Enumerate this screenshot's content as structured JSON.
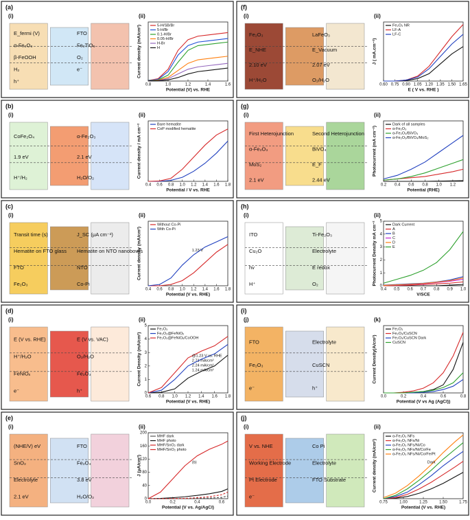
{
  "panels": [
    {
      "label": "(a)",
      "sub": [
        "(i)",
        "(ii)"
      ],
      "texts": [
        "E_fermi (V)",
        "FTO",
        "α-Fe₂O₃",
        "Fe₂TiO₅",
        "β-FeOOH",
        "O₂",
        "H₂",
        "e⁻",
        "h⁺"
      ]
    },
    {
      "label": "(b)",
      "sub": [
        "(i)",
        "(ii)"
      ],
      "texts": [
        "CoFe₂O₄",
        "α-Fe₂O₃",
        "1.9 eV",
        "2.1 eV",
        "H⁺/H₂",
        "H₂O/O₂"
      ]
    },
    {
      "label": "(c)",
      "sub": [
        "(i)",
        "(ii)"
      ],
      "texts": [
        "Transit time (s)",
        "J_SC (μA cm⁻²)",
        "Hematite on FTO glass",
        "Hematite on NTO nanobowls",
        "FTO",
        "NTO",
        "Fe₂O₃",
        "Co-Pi"
      ]
    },
    {
      "label": "(d)",
      "sub": [
        "(i)",
        "(ii)"
      ],
      "texts": [
        "E (V vs. RHE)",
        "E (V vs. VAC)",
        "H⁺/H₂O",
        "O₂/H₂O",
        "FeNiOₓ",
        "Fe₂O₃",
        "e⁻",
        "h⁺"
      ]
    },
    {
      "label": "(e)",
      "sub": [
        "(i)",
        "(ii)"
      ],
      "texts": [
        "(NHE/V) eV",
        "FTO",
        "SnO₂",
        "Fe₂O₃",
        "Electrolyte",
        "3.8 eV",
        "2.1 eV",
        "H₂O/O₂"
      ]
    },
    {
      "label": "(f)",
      "sub": [
        "(i)",
        "(ii)"
      ],
      "texts": [
        "Fe₂O₃",
        "LaFeO₃",
        "E_NHE",
        "E_Vacuum",
        "2.10 eV",
        "2.07 eV",
        "H⁺/H₂O",
        "O₂/H₂O"
      ]
    },
    {
      "label": "(g)",
      "sub": [
        "(i)",
        "(ii)"
      ],
      "texts": [
        "First Heterojunction",
        "Second Heterojunction",
        "α-Fe₂O₃",
        "BiVO₄",
        "MoS₂",
        "E_F",
        "2.1 eV",
        "2.44 eV"
      ]
    },
    {
      "label": "(h)",
      "sub": [
        "(i)",
        "(ii)"
      ],
      "texts": [
        "ITO",
        "Ti-Fe₂O₃",
        "Cu₂O",
        "Electrolyte",
        "hv",
        "E redox",
        "H⁺",
        "O₂"
      ]
    },
    {
      "label": "(i)",
      "sub": [
        "(j)",
        "(k)"
      ],
      "texts": [
        "FTO",
        "Electrolyte",
        "Fe₂O₃",
        "CuSCN",
        "e⁻",
        "h⁺"
      ]
    },
    {
      "label": "(j)",
      "sub": [
        "(i)",
        "(ii)"
      ],
      "texts": [
        "V vs. NHE",
        "Co Pi",
        "Working Electrode",
        "Electrolyte",
        "Pt Electrode",
        "FTO Substrate",
        "e⁻"
      ]
    }
  ],
  "chart_data": [
    {
      "type": "line",
      "xlabel": "Potential (V) vs. RHE",
      "ylabel": "Current density (mA/cm²)",
      "x": [
        0.8,
        0.9,
        1.0,
        1.1,
        1.2,
        1.3,
        1.4,
        1.5,
        1.6
      ],
      "xlim": [
        0.8,
        1.6
      ],
      "xticks": [
        0.8,
        {
          "value": 1.0,
          "label": "1.0"
        },
        1.2,
        1.4,
        1.6
      ],
      "ylim": [
        0,
        5
      ],
      "series": [
        {
          "name": "5-H/SB/Br",
          "color": "#d62728",
          "values": [
            0.05,
            0.2,
            1.0,
            2.6,
            3.5,
            3.8,
            3.9,
            4.0,
            4.1
          ]
        },
        {
          "name": "5-H/Br",
          "color": "#1f4fd6",
          "values": [
            0.05,
            0.15,
            0.8,
            2.2,
            3.0,
            3.3,
            3.4,
            3.5,
            3.6
          ]
        },
        {
          "name": "0.1-H/Br",
          "color": "#2ca02c",
          "values": [
            0.03,
            0.1,
            0.5,
            1.6,
            2.6,
            3.0,
            3.1,
            3.2,
            3.3
          ]
        },
        {
          "name": "0.05-H/Br",
          "color": "#ff7f0e",
          "values": [
            0.02,
            0.08,
            0.3,
            0.9,
            1.5,
            1.8,
            1.9,
            2.0,
            2.1
          ]
        },
        {
          "name": "H-Br",
          "color": "#9467bd",
          "values": [
            0.02,
            0.05,
            0.2,
            0.6,
            1.0,
            1.2,
            1.3,
            1.4,
            1.5
          ]
        },
        {
          "name": "H",
          "color": "#111111",
          "values": [
            0.01,
            0.03,
            0.1,
            0.3,
            0.6,
            0.8,
            0.9,
            1.0,
            1.1
          ]
        }
      ]
    },
    {
      "type": "line",
      "xlabel": "Potential / V vs. RHE",
      "ylabel": "Current density / mA cm⁻²",
      "x": [
        0.4,
        0.6,
        0.8,
        1.0,
        1.2,
        1.4,
        1.6,
        1.8
      ],
      "xlim": [
        0.4,
        1.8
      ],
      "xticks": [
        0.4,
        0.6,
        0.8,
        {
          "value": 1.0,
          "label": "1.0"
        },
        1.2,
        1.4,
        1.6,
        1.8
      ],
      "ylim": [
        0,
        3
      ],
      "series": [
        {
          "name": "Bare hematite",
          "color": "#1f3fbf",
          "values": [
            0,
            0,
            0.05,
            0.2,
            0.5,
            0.9,
            1.4,
            2.0
          ]
        },
        {
          "name": "CoP modified hematite",
          "color": "#d62728",
          "values": [
            0,
            0.02,
            0.15,
            0.6,
            1.2,
            1.8,
            2.3,
            2.6
          ]
        }
      ]
    },
    {
      "type": "line",
      "xlabel": "Potential (V vs. RHE)",
      "ylabel": "Current density (mA/cm²)",
      "x": [
        0.4,
        0.6,
        0.8,
        1.0,
        1.2,
        1.4,
        1.6,
        1.8
      ],
      "xlim": [
        0.4,
        1.8
      ],
      "xticks": [
        0.4,
        0.6,
        0.8,
        {
          "value": 1.0,
          "label": "1.0"
        },
        1.2,
        1.4,
        1.6,
        1.8
      ],
      "ylim": [
        0,
        2.5
      ],
      "annotations": [
        "1.23 V"
      ],
      "series": [
        {
          "name": "Without Co-Pi",
          "color": "#d62728",
          "values": [
            0,
            0,
            0.05,
            0.2,
            0.5,
            0.9,
            1.3,
            1.6
          ]
        },
        {
          "name": "With Co-Pi",
          "color": "#1f3fbf",
          "values": [
            0,
            0.05,
            0.3,
            0.8,
            1.2,
            1.5,
            1.7,
            1.9
          ]
        }
      ]
    },
    {
      "type": "line",
      "xlabel": "Potential (V vs. RHE)",
      "ylabel": "Current Density (mA/cm²)",
      "x": [
        0.6,
        0.8,
        1.0,
        1.2,
        1.4,
        1.6,
        1.8
      ],
      "xlim": [
        0.6,
        1.8
      ],
      "xticks": [
        0.6,
        0.8,
        {
          "value": 1.0,
          "label": "1.0"
        },
        1.2,
        1.4,
        1.6,
        1.8
      ],
      "ylim": [
        0,
        5
      ],
      "yticks": [
        0,
        1,
        2,
        3,
        4,
        5
      ],
      "annotations": [
        "@1.23 V vs. RHE",
        "2.71 mA/cm²",
        "2.24 mA/cm²",
        "1.24 mA/cm²"
      ],
      "series": [
        {
          "name": "Fe₂O₃",
          "color": "#111111",
          "values": [
            0,
            0.05,
            0.3,
            1.1,
            1.6,
            2.0,
            2.8
          ]
        },
        {
          "name": "Fe₂O₃@FeNiOₓ",
          "color": "#1f3fbf",
          "values": [
            0,
            0.2,
            1.0,
            2.0,
            2.5,
            2.9,
            3.6
          ]
        },
        {
          "name": "Fe₂O₃@FeNiOₓ/CoOOH",
          "color": "#d62728",
          "values": [
            0,
            0.4,
            1.5,
            2.6,
            3.1,
            3.5,
            4.2
          ]
        }
      ]
    },
    {
      "type": "line",
      "xlabel": "Potential (V vs. Ag/AgCl)",
      "ylabel": "J (μA/cm²)",
      "x": [
        0,
        0.1,
        0.2,
        0.3,
        0.4,
        0.5,
        0.6,
        0.65
      ],
      "xlim": [
        0,
        0.65
      ],
      "xticks": [
        {
          "value": 0,
          "label": "0.0"
        },
        0.2,
        0.4,
        0.6
      ],
      "ylim": [
        0,
        200
      ],
      "yticks": [
        0,
        40,
        80,
        120,
        160,
        200
      ],
      "annotations": [
        "(b)"
      ],
      "series": [
        {
          "name": "MHF dark",
          "color": "#555555",
          "dashed": true,
          "values": [
            0,
            0,
            0,
            0.5,
            1,
            2,
            4,
            8
          ]
        },
        {
          "name": "MHF photo",
          "color": "#111111",
          "values": [
            0,
            1,
            3,
            6,
            10,
            15,
            22,
            30
          ]
        },
        {
          "name": "MHF/SnO₂ dark",
          "color": "#d62728",
          "dashed": true,
          "values": [
            0,
            0,
            0.5,
            1,
            3,
            6,
            12,
            20
          ]
        },
        {
          "name": "MHF/SnO₂ photo",
          "color": "#d62728",
          "values": [
            0,
            20,
            60,
            100,
            130,
            150,
            165,
            175
          ]
        }
      ]
    },
    {
      "type": "line",
      "xlabel": "E ( V vs. RHE )",
      "ylabel": "J ( mA.cm⁻²)",
      "x": [
        0.6,
        0.75,
        0.9,
        1.05,
        1.2,
        1.35,
        1.5,
        1.65
      ],
      "xlim": [
        0.6,
        1.65
      ],
      "xticks": [
        {
          "value": 0.6,
          "label": "0.60"
        },
        0.75,
        {
          "value": 0.9,
          "label": "0.90"
        },
        1.05,
        {
          "value": 1.2,
          "label": "1.20"
        },
        1.35,
        {
          "value": 1.5,
          "label": "1.50"
        },
        1.65
      ],
      "ylim": [
        0,
        1.2
      ],
      "series": [
        {
          "name": "Fe₂O₃ NR",
          "color": "#111111",
          "values": [
            0,
            0,
            0.01,
            0.05,
            0.15,
            0.35,
            0.55,
            0.7
          ]
        },
        {
          "name": "LF-A",
          "color": "#d62728",
          "values": [
            0,
            0,
            0.02,
            0.1,
            0.3,
            0.6,
            0.9,
            1.15
          ]
        },
        {
          "name": "LF-C",
          "color": "#1f3fbf",
          "values": [
            0,
            0,
            0.02,
            0.08,
            0.25,
            0.5,
            0.75,
            0.95
          ]
        }
      ]
    },
    {
      "type": "line",
      "xlabel": "Potential (RHE)",
      "ylabel": "Photocurrent (mA cm⁻²)",
      "x": [
        0.2,
        0.4,
        0.6,
        0.8,
        1.0,
        1.2,
        1.35
      ],
      "xlim": [
        0.2,
        1.35
      ],
      "xticks": [
        0.2,
        0.4,
        0.6,
        0.8,
        {
          "value": 1.0,
          "label": "1.0"
        },
        1.2
      ],
      "ylim": [
        0,
        2.5
      ],
      "series": [
        {
          "name": "Dark of all samples",
          "color": "#111111",
          "values": [
            0,
            0,
            0,
            0,
            0.01,
            0.02,
            0.03
          ]
        },
        {
          "name": "α-Fe₂O₃",
          "color": "#d62728",
          "values": [
            0.05,
            0.1,
            0.15,
            0.2,
            0.3,
            0.4,
            0.5
          ]
        },
        {
          "name": "α-Fe₂O₃/BiVO₄",
          "color": "#2ca02c",
          "values": [
            0.05,
            0.1,
            0.2,
            0.35,
            0.55,
            0.75,
            0.9
          ]
        },
        {
          "name": "α-Fe₂O₃/BiVO₄/MoS₂",
          "color": "#1f3fbf",
          "values": [
            0.1,
            0.25,
            0.5,
            0.8,
            1.2,
            1.6,
            1.9
          ]
        }
      ]
    },
    {
      "type": "line",
      "xlabel": "V/SCE",
      "ylabel": "Photocurrent Density mA cm⁻²",
      "x": [
        0.4,
        0.5,
        0.6,
        0.7,
        0.8,
        0.9,
        1.0
      ],
      "xlim": [
        0.4,
        1.0
      ],
      "xticks": [
        0.4,
        0.5,
        0.6,
        0.7,
        0.8,
        0.9,
        {
          "value": 1.0,
          "label": "1.0"
        }
      ],
      "ylim": [
        0,
        5
      ],
      "yticks": [
        0,
        1,
        2,
        3,
        4,
        5
      ],
      "series": [
        {
          "name": "Dark Current",
          "color": "#111111",
          "values": [
            0,
            0,
            0,
            0,
            0,
            0.05,
            0.1
          ]
        },
        {
          "name": "A",
          "color": "#d62728",
          "values": [
            0,
            0.02,
            0.05,
            0.1,
            0.15,
            0.2,
            0.3
          ]
        },
        {
          "name": "B",
          "color": "#1f3fbf",
          "values": [
            0.05,
            0.1,
            0.15,
            0.2,
            0.3,
            0.45,
            0.7
          ]
        },
        {
          "name": "C",
          "color": "#c026d3",
          "values": [
            0.02,
            0.05,
            0.1,
            0.15,
            0.25,
            0.35,
            0.5
          ]
        },
        {
          "name": "D",
          "color": "#ff7f0e",
          "values": [
            0.03,
            0.07,
            0.12,
            0.18,
            0.28,
            0.4,
            0.6
          ]
        },
        {
          "name": "E",
          "color": "#2ca02c",
          "values": [
            0.2,
            0.5,
            0.8,
            1.2,
            1.8,
            2.8,
            4.2
          ]
        }
      ]
    },
    {
      "type": "line",
      "xlabel": "Potential (V vs Ag (AgCl))",
      "ylabel": "Current Density(A/cm²)",
      "x": [
        0,
        0.1,
        0.2,
        0.3,
        0.4,
        0.5,
        0.6,
        0.7,
        0.8
      ],
      "xlim": [
        0,
        0.8
      ],
      "xticks": [
        {
          "value": 0,
          "label": "0.0"
        },
        0.2,
        0.4,
        0.6,
        0.8
      ],
      "ylim": [
        0,
        1
      ],
      "series": [
        {
          "name": "Fe₂O₃",
          "color": "#111111",
          "values": [
            0,
            0,
            0,
            0.01,
            0.02,
            0.05,
            0.12,
            0.35,
            0.75
          ]
        },
        {
          "name": "Fe₂O₃/CuSCN",
          "color": "#d62728",
          "values": [
            0,
            0,
            0.01,
            0.03,
            0.07,
            0.15,
            0.3,
            0.55,
            0.9
          ]
        },
        {
          "name": "Fe₂O₃/CuSCN Dark",
          "color": "#1f3fbf",
          "values": [
            0,
            0,
            0,
            0,
            0.01,
            0.02,
            0.05,
            0.1,
            0.2
          ]
        },
        {
          "name": "CuSCN",
          "color": "#2ca02c",
          "values": [
            0,
            0,
            0,
            0.01,
            0.02,
            0.04,
            0.08,
            0.15,
            0.3
          ]
        }
      ]
    },
    {
      "type": "line",
      "xlabel": "Potential (V vs. RHE)",
      "ylabel": "Current density (mA/cm²)",
      "x": [
        0.75,
        0.9,
        1.05,
        1.2,
        1.35,
        1.5,
        1.65,
        1.75
      ],
      "xlim": [
        0.75,
        1.75
      ],
      "xticks": [
        0.75,
        {
          "value": 1.0,
          "label": "1.00"
        },
        1.25,
        {
          "value": 1.5,
          "label": "1.50"
        },
        1.75
      ],
      "ylim": [
        0,
        6
      ],
      "annotations": [
        "Dark"
      ],
      "series": [
        {
          "name": "α-Fe₂O₃ NFs",
          "color": "#111111",
          "values": [
            0,
            0.05,
            0.2,
            0.5,
            0.9,
            1.4,
            2.0,
            2.4
          ]
        },
        {
          "name": "α-Fe₂O₃ NFs/Ni",
          "color": "#d62728",
          "values": [
            0,
            0.1,
            0.4,
            0.9,
            1.5,
            2.2,
            2.9,
            3.4
          ]
        },
        {
          "name": "α-Fe₂O₃ NFs/Ni/Co",
          "color": "#1f3fbf",
          "values": [
            0,
            0.2,
            0.6,
            1.3,
            2.1,
            3.0,
            3.8,
            4.3
          ]
        },
        {
          "name": "α-Fe₂O₃ NFs/Ni/Co/Fe",
          "color": "#2ca02c",
          "values": [
            0,
            0.3,
            0.9,
            1.7,
            2.6,
            3.6,
            4.5,
            5.1
          ]
        },
        {
          "name": "α-Fe₂O₃ NFs/Ni/Co/Fe/Pt",
          "color": "#ff7f0e",
          "values": [
            0.1,
            0.5,
            1.2,
            2.1,
            3.1,
            4.2,
            5.2,
            5.8
          ]
        }
      ]
    }
  ]
}
